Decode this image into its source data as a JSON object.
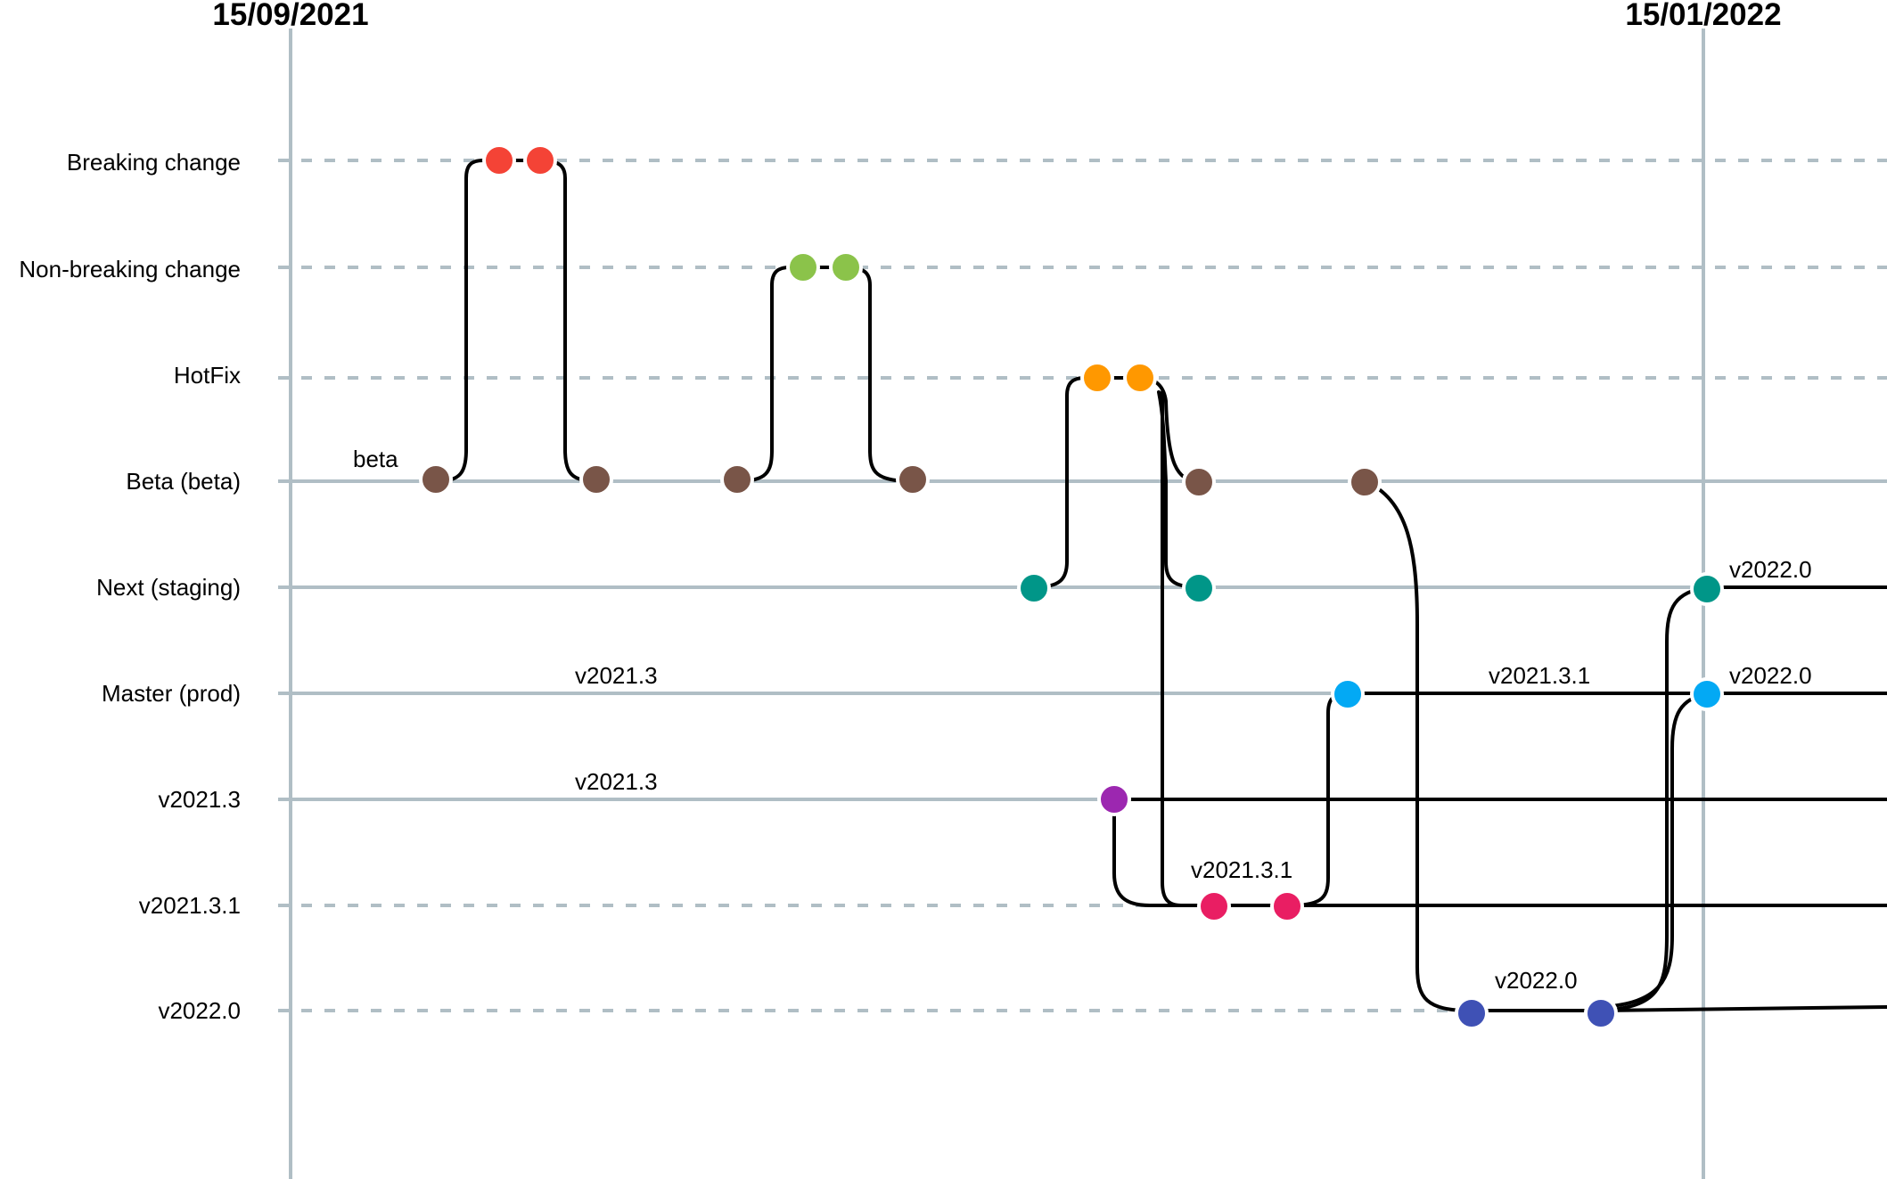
{
  "dates": [
    "15/09/2021",
    "15/01/2022"
  ],
  "lanes": [
    {
      "id": "breaking",
      "label": "Breaking change",
      "style": "dashed"
    },
    {
      "id": "nonbreaking",
      "label": "Non-breaking change",
      "style": "dashed"
    },
    {
      "id": "hotfix",
      "label": "HotFix",
      "style": "dashed"
    },
    {
      "id": "beta",
      "label": "Beta (beta)",
      "style": "solid"
    },
    {
      "id": "next",
      "label": "Next (staging)",
      "style": "solid"
    },
    {
      "id": "master",
      "label": "Master (prod)",
      "style": "solid"
    },
    {
      "id": "v2021_3",
      "label": "v2021.3",
      "style": "solid"
    },
    {
      "id": "v2021_3_1",
      "label": "v2021.3.1",
      "style": "dashed"
    },
    {
      "id": "v2022_0",
      "label": "v2022.0",
      "style": "dashed"
    }
  ],
  "annotations": {
    "beta_tag": "beta",
    "master_v2021_3": "v2021.3",
    "v2021_3_lane": "v2021.3",
    "master_v2021_3_1": "v2021.3.1",
    "v2021_3_1_commits": "v2021.3.1",
    "v2022_0_commits": "v2022.0",
    "next_v2022_0": "v2022.0",
    "master_v2022_0": "v2022.0"
  },
  "colors": {
    "axis": "#b0bec5",
    "branch_line": "#000000",
    "breaking": "#f44336",
    "nonbreaking": "#8bc34a",
    "hotfix": "#ff9800",
    "beta": "#795548",
    "next": "#009688",
    "master": "#03a9f4",
    "v2021_3": "#9c27b0",
    "v2021_3_1": "#e91e63",
    "v2022_0": "#3f51b5"
  }
}
